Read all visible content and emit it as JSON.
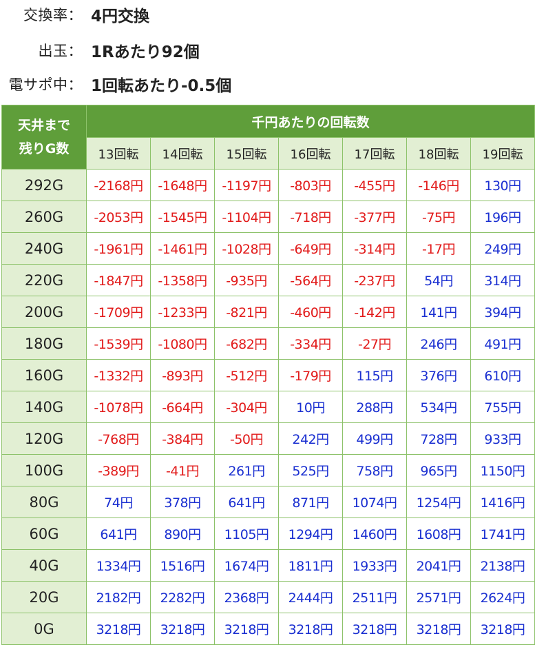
{
  "info": [
    {
      "label": "交換率：",
      "value": "4円交換"
    },
    {
      "label": "出玉：",
      "value": "1Rあたり92個"
    },
    {
      "label": "電サポ中：",
      "value": "1回転あたり-0.5個"
    }
  ],
  "table": {
    "corner_line1": "天井まで",
    "corner_line2": "残りG数",
    "group_header": "千円あたりの回転数",
    "columns": [
      "13回転",
      "14回転",
      "15回転",
      "16回転",
      "17回転",
      "18回転",
      "19回転"
    ],
    "rows": [
      {
        "label": "292G",
        "cells": [
          "-2168円",
          "-1648円",
          "-1197円",
          "-803円",
          "-455円",
          "-146円",
          "130円"
        ]
      },
      {
        "label": "260G",
        "cells": [
          "-2053円",
          "-1545円",
          "-1104円",
          "-718円",
          "-377円",
          "-75円",
          "196円"
        ]
      },
      {
        "label": "240G",
        "cells": [
          "-1961円",
          "-1461円",
          "-1028円",
          "-649円",
          "-314円",
          "-17円",
          "249円"
        ]
      },
      {
        "label": "220G",
        "cells": [
          "-1847円",
          "-1358円",
          "-935円",
          "-564円",
          "-237円",
          "54円",
          "314円"
        ]
      },
      {
        "label": "200G",
        "cells": [
          "-1709円",
          "-1233円",
          "-821円",
          "-460円",
          "-142円",
          "141円",
          "394円"
        ]
      },
      {
        "label": "180G",
        "cells": [
          "-1539円",
          "-1080円",
          "-682円",
          "-334円",
          "-27円",
          "246円",
          "491円"
        ]
      },
      {
        "label": "160G",
        "cells": [
          "-1332円",
          "-893円",
          "-512円",
          "-179円",
          "115円",
          "376円",
          "610円"
        ]
      },
      {
        "label": "140G",
        "cells": [
          "-1078円",
          "-664円",
          "-304円",
          "10円",
          "288円",
          "534円",
          "755円"
        ]
      },
      {
        "label": "120G",
        "cells": [
          "-768円",
          "-384円",
          "-50円",
          "242円",
          "499円",
          "728円",
          "933円"
        ]
      },
      {
        "label": "100G",
        "cells": [
          "-389円",
          "-41円",
          "261円",
          "525円",
          "758円",
          "965円",
          "1150円"
        ]
      },
      {
        "label": "80G",
        "cells": [
          "74円",
          "378円",
          "641円",
          "871円",
          "1074円",
          "1254円",
          "1416円"
        ]
      },
      {
        "label": "60G",
        "cells": [
          "641円",
          "890円",
          "1105円",
          "1294円",
          "1460円",
          "1608円",
          "1741円"
        ]
      },
      {
        "label": "40G",
        "cells": [
          "1334円",
          "1516円",
          "1674円",
          "1811円",
          "1933円",
          "2041円",
          "2138円"
        ]
      },
      {
        "label": "20G",
        "cells": [
          "2182円",
          "2282円",
          "2368円",
          "2444円",
          "2511円",
          "2571円",
          "2624円"
        ]
      },
      {
        "label": "0G",
        "cells": [
          "3218円",
          "3218円",
          "3218円",
          "3218円",
          "3218円",
          "3218円",
          "3218円"
        ]
      }
    ]
  },
  "colors": {
    "header_green": "#5f9e3a",
    "light_green": "#e2efd3",
    "border": "#8dc26a",
    "negative": "#e21b1b",
    "positive": "#1a2fd1"
  }
}
